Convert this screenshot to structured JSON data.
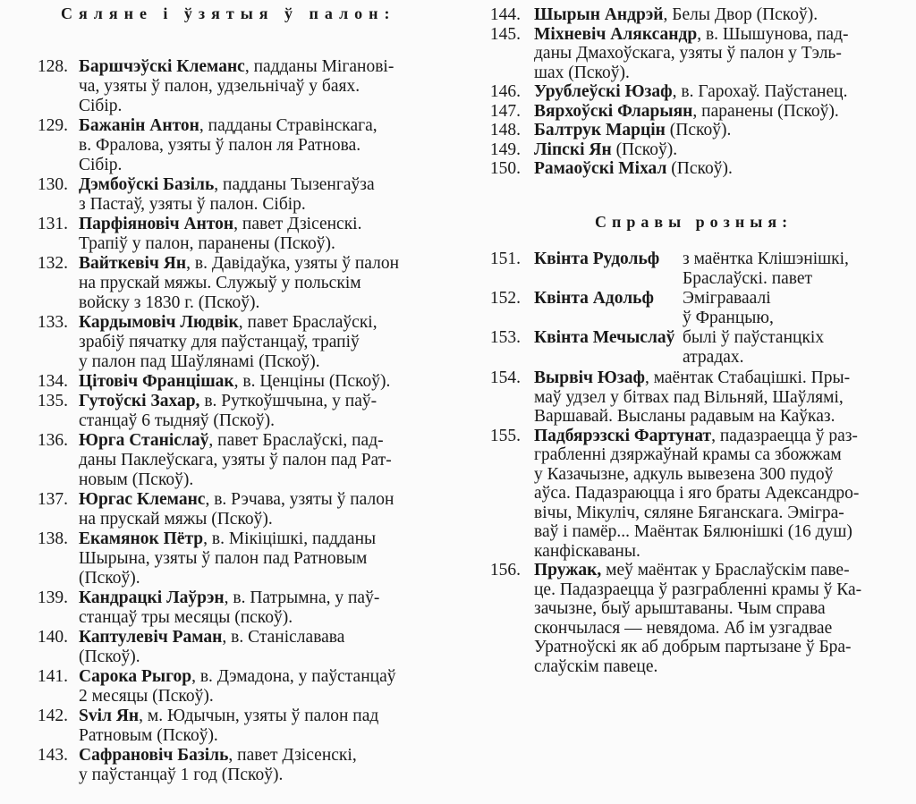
{
  "left": {
    "heading": "Сяляне і ўзятыя ў палон:",
    "entries": [
      {
        "num": "128.",
        "name": "Баршчэўскі Клеманс",
        "lines": [
          ", падданы Міганові-",
          "ча, узяты ў палон, удзельнічаў у баях.",
          "Сібір."
        ]
      },
      {
        "num": "129.",
        "name": "Бажанін Антон",
        "lines": [
          ", падданы Стравінскага,",
          "в. Фралова, узяты ў палон ля Ратнова.",
          "Сібір."
        ]
      },
      {
        "num": "130.",
        "name": "Дэмбоўскі Базіль",
        "lines": [
          ", падданы Тызенгаўза",
          "з Пастаў, узяты ў палон. Сібір."
        ]
      },
      {
        "num": "131.",
        "name": "Парфіяновіч Антон",
        "lines": [
          ", павет Дзісенскі.",
          "Трапіў у палон, паранены (Пскоў)."
        ]
      },
      {
        "num": "132.",
        "name": "Вайткевіч Ян",
        "lines": [
          ", в. Давідаўка, узяты ў палон",
          "на прускай мяжы. Служыў у польскім",
          "войску з 1830 г. (Пскоў)."
        ]
      },
      {
        "num": "133.",
        "name": "Кардымовіч Людвік",
        "lines": [
          ", павет Браслаўскі,",
          "зрабіў пячатку для паўстанцаў, трапіў",
          "у палон пад Шаўлянамі (Пскоў)."
        ]
      },
      {
        "num": "134.",
        "name": "Цітовіч Францішак",
        "lines": [
          ", в. Ценціны (Пскоў)."
        ]
      },
      {
        "num": "135.",
        "name": "Гутоўскі Захар,",
        "lines": [
          " в. Руткоўшчына, у паў-",
          "станцаў 6 тыдняў (Пскоў)."
        ]
      },
      {
        "num": "136.",
        "name": "Юрга Станіслаў",
        "lines": [
          ", павет Браслаўскі, пад-",
          "даны Паклеўскага, узяты ў палон пад Рат-",
          "новым (Пскоў)."
        ]
      },
      {
        "num": "137.",
        "name": "Юргас Клеманс",
        "lines": [
          ", в. Рэчава, узяты ў палон",
          "на прускай мяжы (Пскоў)."
        ]
      },
      {
        "num": "138.",
        "name": "Екамянок Пётр",
        "lines": [
          ", в. Мікіцішкі, падданы",
          "Шырына, узяты ў палон пад Ратновым",
          "(Пскоў)."
        ]
      },
      {
        "num": "139.",
        "name": "Кандрацкі Лаўрэн",
        "lines": [
          ", в. Патрымна, у паў-",
          "станцаў тры месяцы (пскоў)."
        ]
      },
      {
        "num": "140.",
        "name": "Каптулевіч Раман",
        "lines": [
          ", в. Станіславава",
          "(Пскоў)."
        ]
      },
      {
        "num": "141.",
        "name": "Сарока Рыгор",
        "lines": [
          ", в. Дэмадона, у паўстанцаў",
          "2 месяцы (Пскоў)."
        ]
      },
      {
        "num": "142.",
        "name": "Svіл Ян",
        "lines": [
          ", м. Юдычын, узяты ў палон пад",
          "Ратновым (Пскоў)."
        ]
      },
      {
        "num": "143.",
        "name": "Сафрановіч Базіль",
        "lines": [
          ", павет Дзісенскі,",
          "у паўстанцаў 1 год (Пскоў)."
        ]
      }
    ]
  },
  "right": {
    "entries_top": [
      {
        "num": "144.",
        "name": "Шырын Андрэй",
        "lines": [
          ", Белы Двор (Пскоў)."
        ]
      },
      {
        "num": "145.",
        "name": "Міхневіч Аляксандр",
        "lines": [
          ", в. Шышунова, пад-",
          "даны Дмахоўскага, узяты ў палон у Тэль-",
          "шах (Пскоў)."
        ]
      },
      {
        "num": "146.",
        "name": "Урублеўскі Юзаф",
        "lines": [
          ", в. Гарохаў. Паўстанец."
        ]
      },
      {
        "num": "147.",
        "name": "Вярхоўскі Фларыян",
        "lines": [
          ", паранены (Пскоў)."
        ]
      },
      {
        "num": "148.",
        "name": "Балтрук Марцін",
        "lines": [
          " (Пскоў)."
        ]
      },
      {
        "num": "149.",
        "name": "Ліпскі Ян",
        "lines": [
          " (Пскоў)."
        ]
      },
      {
        "num": "150.",
        "name": "Рамаоўскі Міхал",
        "lines": [
          " (Пскоў)."
        ]
      }
    ],
    "heading": "Справы розныя:",
    "table": [
      {
        "num": "151.",
        "name": "Квінта Рудольф",
        "lines": [
          "з маёнтка Клішэнішкі,",
          "Браслаўскі. павет"
        ]
      },
      {
        "num": "152.",
        "name": "Квінта Адольф",
        "lines": [
          "Эміграваалі",
          "ў Францыю,"
        ]
      },
      {
        "num": "153.",
        "name": "Квінта Мечыслаў",
        "lines": [
          "былі ў паўстанцкіх",
          "атрадах."
        ]
      }
    ],
    "entries_bottom": [
      {
        "num": "154.",
        "name": "Вырвіч Юзаф",
        "lines": [
          ", маёнтак Стабацішкі. Пры-",
          "маў удзел у бітвах пад Вільняй, Шаўлямі,",
          "Варшавай. Высланы радавым на Каўказ."
        ]
      },
      {
        "num": "155.",
        "name": "Падбярэзскі Фартунат",
        "lines": [
          ", падазраецца ў раз-",
          "грабленні дзяржаўнай крамы са збожжам",
          "у Казачызне, адкуль вывезена 300 пудоў",
          "аўса. Падазраюцца і яго браты Адександро-",
          "вічы, Мікуліч, сяляне Бяганскага. Эмігра-",
          "ваў і памёр... Маёнтак Бялюнішкі (16 душ)",
          "канфіскаваны."
        ]
      },
      {
        "num": "156.",
        "name": "Пружак,",
        "lines": [
          " меў маёнтак у Браслаўскім паве-",
          "це. Падазраецца ў разграбленні крамы ў Ка-",
          "зачызне, быў арыштаваны. Чым справа",
          "скончылася — невядома. Аб ім узгадвае",
          "Уратноўскі як аб добрым партызане ў Бра-",
          "слаўскім павеце."
        ]
      }
    ]
  }
}
